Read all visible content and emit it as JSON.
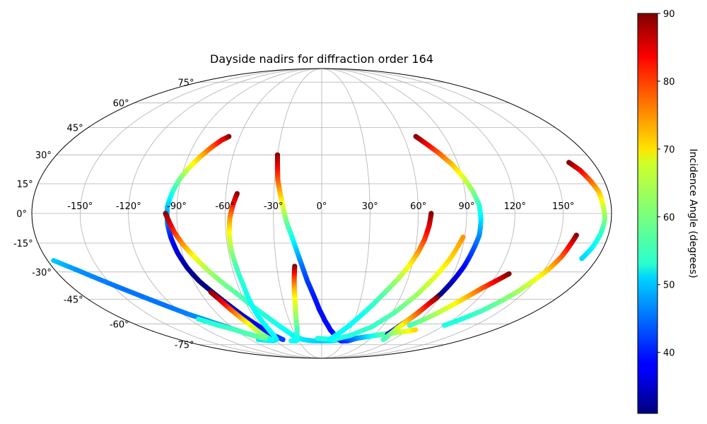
{
  "chart_data": {
    "type": "scatter",
    "projection": "mollweide",
    "title": "Dayside nadirs for diffraction order 164",
    "x_ticks": [
      -150,
      -120,
      -90,
      -60,
      -30,
      0,
      30,
      60,
      90,
      120,
      150
    ],
    "x_tick_labels": [
      "-150°",
      "-120°",
      "-90°",
      "-60°",
      "-30°",
      "0°",
      "30°",
      "60°",
      "90°",
      "120°",
      "150°"
    ],
    "y_ticks": [
      -75,
      -60,
      -45,
      -30,
      -15,
      0,
      15,
      30,
      45,
      60,
      75
    ],
    "y_tick_labels": [
      "-75°",
      "-60°",
      "-45°",
      "-30°",
      "-15°",
      "0°",
      "15°",
      "30°",
      "45°",
      "60°",
      "75°"
    ],
    "grid": true,
    "colorbar": {
      "label": "Incidence Angle (degrees)",
      "range": [
        31,
        90
      ],
      "ticks": [
        40,
        50,
        60,
        70,
        80,
        90
      ],
      "tick_labels": [
        "40",
        "50",
        "60",
        "70",
        "80",
        "90"
      ],
      "colormap": "jet"
    },
    "series": [
      {
        "points": [
          [
            -68,
            40,
            90
          ],
          [
            -72,
            38,
            84
          ],
          [
            -77,
            34,
            78
          ],
          [
            -82,
            29,
            72
          ],
          [
            -87,
            23,
            66
          ],
          [
            -91,
            17,
            60
          ],
          [
            -94,
            10,
            55
          ],
          [
            -96,
            3,
            50
          ],
          [
            -96,
            -5,
            45
          ],
          [
            -95,
            -12,
            40
          ],
          [
            -93,
            -20,
            36
          ],
          [
            -90,
            -28,
            33
          ],
          [
            -86,
            -35,
            31
          ],
          [
            -80,
            -42,
            32
          ],
          [
            -74,
            -49,
            34
          ],
          [
            -69,
            -55,
            36
          ],
          [
            -63,
            -61,
            38
          ],
          [
            -57,
            -67,
            40
          ],
          [
            -49,
            -71,
            42
          ]
        ]
      },
      {
        "points": [
          [
            -97,
            0,
            90
          ],
          [
            -95,
            -4,
            86
          ],
          [
            -92,
            -10,
            80
          ],
          [
            -88,
            -16,
            74
          ],
          [
            -83,
            -22,
            68
          ],
          [
            -77,
            -29,
            63
          ],
          [
            -70,
            -36,
            60
          ],
          [
            -62,
            -43,
            58
          ],
          [
            -55,
            -50,
            56
          ],
          [
            -48,
            -56,
            55
          ],
          [
            -41,
            -62,
            54
          ],
          [
            -33,
            -68,
            53
          ],
          [
            -24,
            -71,
            52
          ],
          [
            -12,
            -72,
            51
          ],
          [
            0,
            -72,
            50
          ],
          [
            12,
            -72,
            51
          ],
          [
            24,
            -71,
            52
          ]
        ]
      },
      {
        "points": [
          [
            -53,
            10,
            90
          ],
          [
            -55,
            5,
            83
          ],
          [
            -57,
            -2,
            75
          ],
          [
            -58,
            -10,
            68
          ],
          [
            -58,
            -19,
            62
          ],
          [
            -57,
            -28,
            57
          ],
          [
            -56,
            -37,
            55
          ],
          [
            -56,
            -46,
            54
          ],
          [
            -56,
            -55,
            53
          ],
          [
            -55,
            -63,
            53
          ],
          [
            -55,
            -68,
            53
          ],
          [
            -57,
            -71,
            53
          ],
          [
            -64,
            -72,
            52
          ],
          [
            -80,
            -71,
            52
          ]
        ]
      },
      {
        "points": [
          [
            -30,
            30,
            90
          ],
          [
            -29,
            24,
            84
          ],
          [
            -28,
            17,
            78
          ],
          [
            -26,
            10,
            72
          ],
          [
            -24,
            3,
            66
          ],
          [
            -22,
            -4,
            60
          ],
          [
            -19,
            -11,
            55
          ],
          [
            -16,
            -19,
            50
          ],
          [
            -13,
            -27,
            45
          ],
          [
            -10,
            -35,
            42
          ],
          [
            -6,
            -43,
            40
          ],
          [
            -2,
            -51,
            39
          ],
          [
            3,
            -58,
            39
          ],
          [
            9,
            -64,
            39
          ],
          [
            17,
            -69,
            39
          ],
          [
            25,
            -72,
            40
          ],
          [
            34,
            -72,
            42
          ],
          [
            43,
            -70,
            46
          ],
          [
            52,
            -69,
            50
          ],
          [
            61,
            -68,
            54
          ],
          [
            70,
            -67,
            58
          ],
          [
            80,
            -66,
            62
          ],
          [
            90,
            -65,
            66
          ],
          [
            98,
            -64,
            70
          ]
        ]
      },
      {
        "points": [
          [
            -18,
            -27,
            90
          ],
          [
            -19,
            -33,
            80
          ],
          [
            -20,
            -40,
            72
          ],
          [
            -21,
            -48,
            66
          ],
          [
            -23,
            -56,
            62
          ],
          [
            -25,
            -63,
            58
          ],
          [
            -29,
            -69,
            55
          ],
          [
            -33,
            -72,
            54
          ],
          [
            -40,
            -72,
            54
          ]
        ]
      },
      {
        "points": [
          [
            -82,
            -41,
            90
          ],
          [
            -79,
            -45,
            86
          ],
          [
            -76,
            -50,
            80
          ],
          [
            -73,
            -55,
            74
          ],
          [
            -70,
            -60,
            68
          ],
          [
            -68,
            -65,
            64
          ],
          [
            -66,
            -69,
            60
          ],
          [
            -64,
            -71,
            58
          ]
        ]
      },
      {
        "points": [
          [
            -176,
            -24,
            50
          ],
          [
            -165,
            -29,
            47
          ],
          [
            -155,
            -34,
            46
          ],
          [
            -145,
            -39,
            45
          ],
          [
            -135,
            -44,
            45
          ],
          [
            -125,
            -49,
            45
          ],
          [
            -115,
            -54,
            46
          ],
          [
            -105,
            -58,
            47
          ],
          [
            -95,
            -62,
            48
          ],
          [
            -85,
            -66,
            50
          ],
          [
            -75,
            -69,
            52
          ],
          [
            -65,
            -71,
            53
          ]
        ]
      },
      {
        "points": [
          [
            -112,
            -57,
            55
          ],
          [
            -101,
            -61,
            56
          ],
          [
            -90,
            -64,
            57
          ],
          [
            -79,
            -68,
            58
          ],
          [
            -69,
            -70,
            60
          ]
        ]
      },
      {
        "points": [
          [
            -5,
            -70,
            55
          ],
          [
            15,
            -71,
            55
          ],
          [
            33,
            -68,
            55
          ],
          [
            50,
            -62,
            56
          ],
          [
            62,
            -53,
            58
          ],
          [
            71,
            -43,
            62
          ],
          [
            78,
            -33,
            66
          ],
          [
            84,
            -23,
            70
          ],
          [
            89,
            -12,
            74
          ]
        ]
      },
      {
        "points": [
          [
            68,
            0,
            90
          ],
          [
            67,
            -6,
            85
          ],
          [
            65,
            -13,
            80
          ],
          [
            62,
            -20,
            74
          ],
          [
            58,
            -27,
            68
          ],
          [
            53,
            -34,
            63
          ],
          [
            47,
            -41,
            59
          ],
          [
            41,
            -48,
            56
          ],
          [
            34,
            -55,
            54
          ],
          [
            26,
            -62,
            53
          ],
          [
            18,
            -67,
            53
          ],
          [
            10,
            -71,
            53
          ]
        ]
      },
      {
        "points": [
          [
            69,
            40,
            90
          ],
          [
            74,
            36,
            84
          ],
          [
            80,
            31,
            78
          ],
          [
            86,
            25,
            72
          ],
          [
            91,
            18,
            66
          ],
          [
            95,
            11,
            61
          ],
          [
            98,
            4,
            56
          ],
          [
            99,
            -3,
            52
          ],
          [
            99,
            -11,
            47
          ],
          [
            97,
            -19,
            43
          ],
          [
            95,
            -27,
            39
          ],
          [
            92,
            -35,
            35
          ],
          [
            89,
            -42,
            32
          ],
          [
            85,
            -48,
            31
          ],
          [
            81,
            -55,
            32
          ],
          [
            77,
            -61,
            34
          ],
          [
            74,
            -67,
            36
          ]
        ]
      },
      {
        "points": [
          [
            88,
            -44,
            90
          ],
          [
            85,
            -48,
            84
          ],
          [
            82,
            -53,
            78
          ],
          [
            79,
            -58,
            72
          ],
          [
            77,
            -63,
            66
          ],
          [
            77,
            -68,
            60
          ],
          [
            78,
            -71,
            57
          ]
        ]
      },
      {
        "points": [
          [
            128,
            -31,
            90
          ],
          [
            122,
            -35,
            84
          ],
          [
            116,
            -39,
            78
          ],
          [
            110,
            -44,
            72
          ],
          [
            104,
            -49,
            67
          ],
          [
            98,
            -54,
            63
          ],
          [
            92,
            -58,
            60
          ],
          [
            86,
            -61,
            57
          ]
        ]
      },
      {
        "points": [
          [
            160,
            -11,
            90
          ],
          [
            158,
            -16,
            84
          ],
          [
            156,
            -22,
            78
          ],
          [
            153,
            -28,
            72
          ],
          [
            149,
            -34,
            67
          ],
          [
            145,
            -40,
            63
          ],
          [
            140,
            -46,
            60
          ],
          [
            134,
            -52,
            57
          ],
          [
            127,
            -57,
            55
          ],
          [
            120,
            -61,
            55
          ]
        ]
      },
      {
        "points": [
          [
            164,
            26,
            90
          ],
          [
            168,
            22,
            84
          ],
          [
            171,
            17,
            78
          ],
          [
            174,
            11,
            72
          ],
          [
            175,
            4,
            66
          ],
          [
            176,
            -3,
            61
          ],
          [
            175,
            -10,
            56
          ],
          [
            173,
            -17,
            53
          ],
          [
            170,
            -23,
            51
          ]
        ]
      }
    ]
  }
}
